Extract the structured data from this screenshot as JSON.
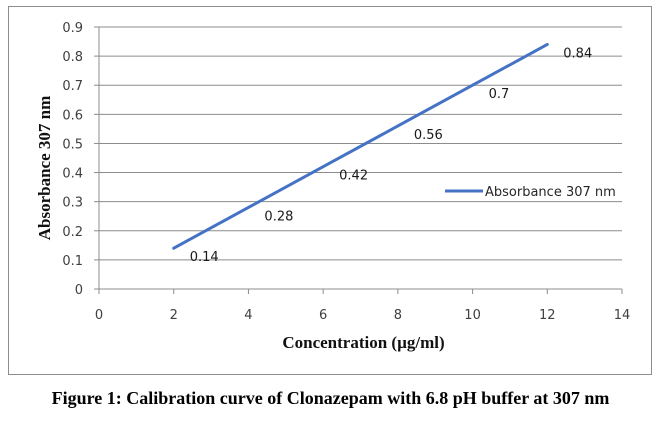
{
  "chart_data": {
    "type": "line",
    "title": "",
    "xlabel": "Concentration (µg/ml)",
    "ylabel": "Absorbance 307 nm",
    "xlim": [
      0,
      14
    ],
    "ylim": [
      0,
      0.9
    ],
    "xticks": [
      0,
      2,
      4,
      6,
      8,
      10,
      12,
      14
    ],
    "yticks": [
      0,
      0.1,
      0.2,
      0.3,
      0.4,
      0.5,
      0.6,
      0.7,
      0.8,
      0.9
    ],
    "xtick_labels": [
      "0",
      "2",
      "4",
      "6",
      "8",
      "10",
      "12",
      "14"
    ],
    "ytick_labels": [
      "0",
      "0.1",
      "0.2",
      "0.3",
      "0.4",
      "0.5",
      "0.6",
      "0.7",
      "0.8",
      "0.9"
    ],
    "grid": "horizontal",
    "legend_position": "right",
    "series": [
      {
        "name": "Absorbance 307 nm",
        "color": "#4472c4",
        "x": [
          2,
          4,
          6,
          8,
          10,
          12
        ],
        "y": [
          0.14,
          0.28,
          0.42,
          0.56,
          0.7,
          0.84
        ],
        "data_labels": [
          "0.14",
          "0.28",
          "0.42",
          "0.56",
          "0.7",
          "0.84"
        ]
      }
    ]
  },
  "caption": "Figure 1: Calibration curve of Clonazepam with 6.8 pH buffer at 307 nm"
}
